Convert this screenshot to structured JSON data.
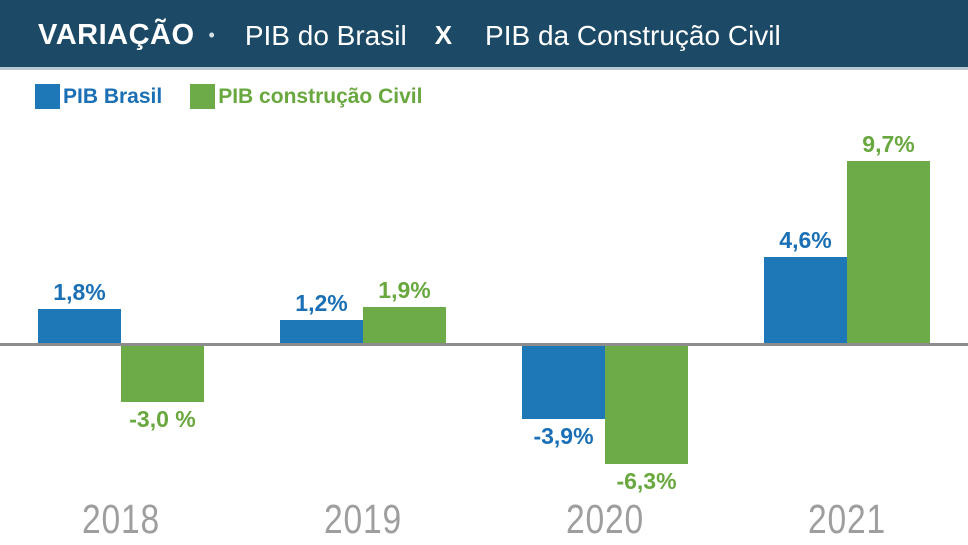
{
  "header": {
    "title_main": "VARIAÇÃO",
    "separator": "•",
    "title_part1": "PIB do Brasil",
    "title_vs": "X",
    "title_part2": "PIB da Construção Civil"
  },
  "legend": {
    "items": [
      {
        "label": "PIB Brasil",
        "color": "#1e78b8",
        "text_color": "#1a6fb5"
      },
      {
        "label": "PIB construção Civil",
        "color": "#6cab47",
        "text_color": "#69a73f"
      }
    ]
  },
  "chart_data": {
    "type": "bar",
    "title": "VARIAÇÃO • PIB do Brasil X PIB da Construção Civil",
    "categories": [
      "2018",
      "2019",
      "2020",
      "2021"
    ],
    "series": [
      {
        "name": "PIB Brasil",
        "color": "#1e78b8",
        "label_color": "#1a6fb5",
        "values": [
          1.8,
          1.2,
          -3.9,
          4.6
        ],
        "labels": [
          "1,8%",
          "1,2%",
          "-3,9%",
          "4,6%"
        ]
      },
      {
        "name": "PIB construção Civil",
        "color": "#6cab47",
        "label_color": "#69a73f",
        "values": [
          -3.0,
          1.9,
          -6.3,
          9.7
        ],
        "labels": [
          "-3,0 %",
          "1,9%",
          "-6,3%",
          "9,7%"
        ]
      }
    ],
    "unit": "%",
    "xlabel": "",
    "ylabel": "",
    "ylim": [
      -7,
      10.5
    ],
    "grid": false,
    "baseline": 0,
    "legend_position": "top-left"
  },
  "colors": {
    "header_bg": "#1c4a66",
    "header_underline": "#b7c8d2",
    "axis_line": "#8c8c8c",
    "year_label": "#9e9e9e",
    "background": "#ffffff"
  }
}
